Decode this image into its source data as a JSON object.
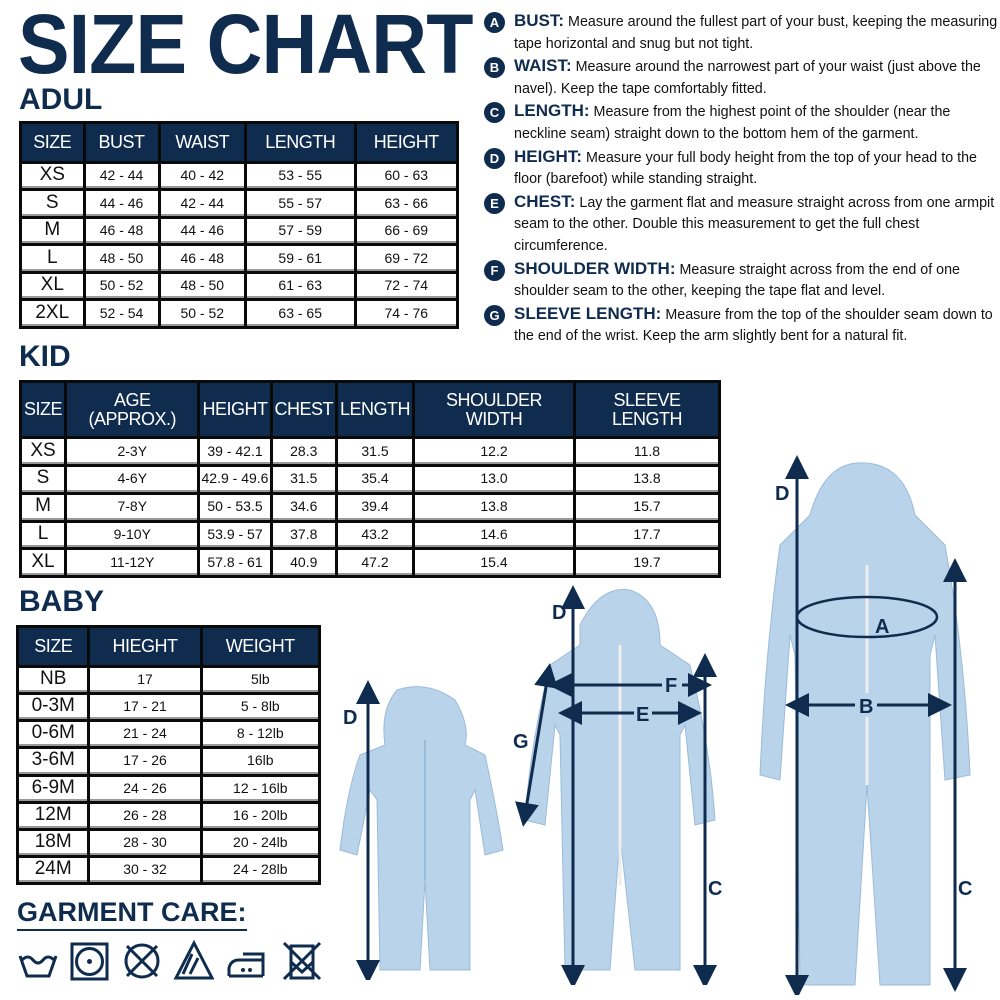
{
  "title": "SIZE CHART",
  "adult": {
    "heading": "ADUL",
    "headers": [
      "SIZE",
      "BUST",
      "WAIST",
      "LENGTH",
      "HEIGHT"
    ],
    "rows": [
      [
        "XS",
        "42 - 44",
        "40 - 42",
        "53 - 55",
        "60 - 63"
      ],
      [
        "S",
        "44 - 46",
        "42 - 44",
        "55 - 57",
        "63 - 66"
      ],
      [
        "M",
        "46 - 48",
        "44 - 46",
        "57 - 59",
        "66 - 69"
      ],
      [
        "L",
        "48 - 50",
        "46 - 48",
        "59 - 61",
        "69 - 72"
      ],
      [
        "XL",
        "50 - 52",
        "48 - 50",
        "61 - 63",
        "72 - 74"
      ],
      [
        "2XL",
        "52 - 54",
        "50 - 52",
        "63 - 65",
        "74 - 76"
      ]
    ]
  },
  "kid": {
    "heading": "KID",
    "headers": [
      "SIZE",
      "AGE (APPROX.)",
      "HEIGHT",
      "CHEST",
      "LENGTH",
      "SHOULDER WIDTH",
      "SLEEVE LENGTH"
    ],
    "rows": [
      [
        "XS",
        "2-3Y",
        "39 - 42.1",
        "28.3",
        "31.5",
        "12.2",
        "11.8"
      ],
      [
        "S",
        "4-6Y",
        "42.9 - 49.6",
        "31.5",
        "35.4",
        "13.0",
        "13.8"
      ],
      [
        "M",
        "7-8Y",
        "50 - 53.5",
        "34.6",
        "39.4",
        "13.8",
        "15.7"
      ],
      [
        "L",
        "9-10Y",
        "53.9 - 57",
        "37.8",
        "43.2",
        "14.6",
        "17.7"
      ],
      [
        "XL",
        "11-12Y",
        "57.8 - 61",
        "40.9",
        "47.2",
        "15.4",
        "19.7"
      ]
    ]
  },
  "baby": {
    "heading": "BABY",
    "headers": [
      "SIZE",
      "HIEGHT",
      "WEIGHT"
    ],
    "rows": [
      [
        "NB",
        "17",
        "5lb"
      ],
      [
        "0-3M",
        "17 - 21",
        "5 - 8lb"
      ],
      [
        "0-6M",
        "21 - 24",
        "8 - 12lb"
      ],
      [
        "3-6M",
        "17 - 26",
        "16lb"
      ],
      [
        "6-9M",
        "24 - 26",
        "12 - 16lb"
      ],
      [
        "12M",
        "26 - 28",
        "16 - 20lb"
      ],
      [
        "18M",
        "28 - 30",
        "20 - 24lb"
      ],
      [
        "24M",
        "30 - 32",
        "24 - 28lb"
      ]
    ]
  },
  "instructions": [
    {
      "letter": "A",
      "label": "BUST:",
      "text": "Measure around the fullest part of your bust, keeping the measuring tape horizontal and snug but not tight."
    },
    {
      "letter": "B",
      "label": "WAIST:",
      "text": "Measure around the narrowest part of your waist (just above the navel). Keep the tape comfortably fitted."
    },
    {
      "letter": "C",
      "label": "LENGTH:",
      "text": "Measure from the highest point of the shoulder (near the neckline seam) straight down to the bottom hem of the garment."
    },
    {
      "letter": "D",
      "label": "HEIGHT:",
      "text": "Measure your full body height from the top of your head to the floor (barefoot) while standing straight."
    },
    {
      "letter": "E",
      "label": "CHEST:",
      "text": "Lay the garment flat and measure straight across from one armpit seam to the other. Double this measurement to get the full chest circumference."
    },
    {
      "letter": "F",
      "label": "SHOULDER WIDTH:",
      "text": "Measure straight across from the end of one shoulder seam to the other, keeping the tape flat and level."
    },
    {
      "letter": "G",
      "label": "SLEEVE LENGTH:",
      "text": "Measure from the top of the shoulder seam down to the end of the wrist. Keep the arm slightly bent for a natural fit."
    }
  ],
  "care": {
    "heading": "GARMENT CARE:",
    "icons": [
      "hand-wash-icon",
      "tumble-dry-icon",
      "do-not-dry-clean-icon",
      "bleach-allowed-icon",
      "iron-medium-icon",
      "do-not-tumble-dry-icon"
    ]
  },
  "diagram_labels": {
    "baby": [
      "D"
    ],
    "kid": [
      "D",
      "F",
      "E",
      "G",
      "C"
    ],
    "adult": [
      "D",
      "A",
      "B",
      "C"
    ]
  },
  "colors": {
    "navy": "#0f2c4f",
    "garment": "#b9d3ea"
  }
}
